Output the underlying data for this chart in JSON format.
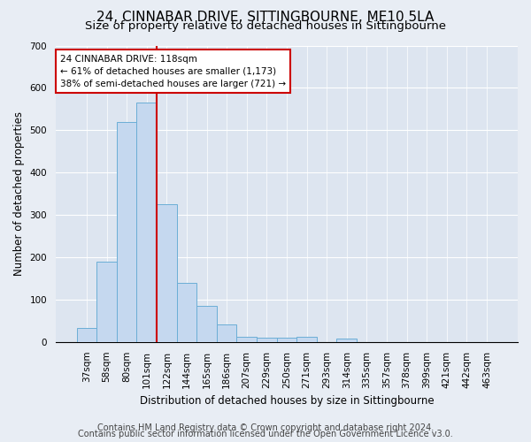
{
  "title": "24, CINNABAR DRIVE, SITTINGBOURNE, ME10 5LA",
  "subtitle": "Size of property relative to detached houses in Sittingbourne",
  "xlabel": "Distribution of detached houses by size in Sittingbourne",
  "ylabel": "Number of detached properties",
  "footer1": "Contains HM Land Registry data © Crown copyright and database right 2024.",
  "footer2": "Contains public sector information licensed under the Open Government Licence v3.0.",
  "categories": [
    "37sqm",
    "58sqm",
    "80sqm",
    "101sqm",
    "122sqm",
    "144sqm",
    "165sqm",
    "186sqm",
    "207sqm",
    "229sqm",
    "250sqm",
    "271sqm",
    "293sqm",
    "314sqm",
    "335sqm",
    "357sqm",
    "378sqm",
    "399sqm",
    "421sqm",
    "442sqm",
    "463sqm"
  ],
  "values": [
    32,
    190,
    520,
    565,
    325,
    140,
    85,
    42,
    13,
    10,
    10,
    13,
    0,
    8,
    0,
    0,
    0,
    0,
    0,
    0,
    0
  ],
  "bar_color": "#c5d8ef",
  "bar_edge_color": "#6baed6",
  "vline_index": 4,
  "vline_color": "#cc0000",
  "annotation_line1": "24 CINNABAR DRIVE: 118sqm",
  "annotation_line2": "← 61% of detached houses are smaller (1,173)",
  "annotation_line3": "38% of semi-detached houses are larger (721) →",
  "annotation_box_color": "#ffffff",
  "annotation_box_edge": "#cc0000",
  "ylim": [
    0,
    700
  ],
  "yticks": [
    0,
    100,
    200,
    300,
    400,
    500,
    600,
    700
  ],
  "background_color": "#e8edf4",
  "plot_bg_color": "#dde5f0",
  "title_fontsize": 11,
  "subtitle_fontsize": 9.5,
  "ylabel_fontsize": 8.5,
  "xlabel_fontsize": 8.5,
  "tick_fontsize": 7.5,
  "annotation_fontsize": 7.5,
  "footer_fontsize": 7
}
